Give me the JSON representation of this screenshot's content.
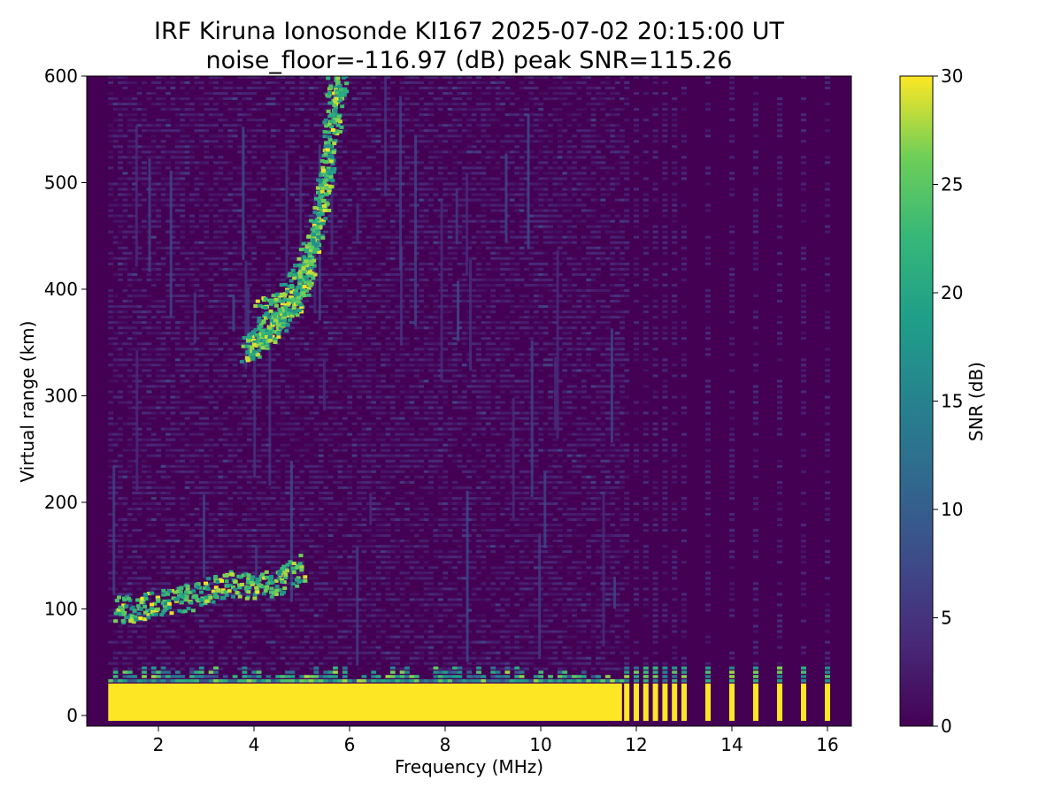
{
  "chart_data": {
    "type": "heatmap",
    "title_line1": "IRF Kiruna Ionosonde KI167 2025-07-02 20:15:00  UT",
    "title_line2": "noise_floor=-116.97 (dB) peak SNR=115.26",
    "xlabel": "Frequency (MHz)",
    "ylabel": "Virtual range (km)",
    "xlim": [
      0.5,
      16.5
    ],
    "ylim": [
      -10,
      600
    ],
    "x_ticks": [
      2,
      4,
      6,
      8,
      10,
      12,
      14,
      16
    ],
    "x_tick_labels": [
      "2",
      "4",
      "6",
      "8",
      "10",
      "12",
      "14",
      "16"
    ],
    "y_ticks": [
      0,
      100,
      200,
      300,
      400,
      500,
      600
    ],
    "y_tick_labels": [
      "0",
      "100",
      "200",
      "300",
      "400",
      "500",
      "600"
    ],
    "colorbar": {
      "label": "SNR (dB)",
      "range": [
        0,
        30
      ],
      "colormap": "viridis",
      "ticks": [
        0,
        5,
        10,
        15,
        20,
        25,
        30
      ],
      "tick_labels": [
        "0",
        "5",
        "10",
        "15",
        "20",
        "25",
        "30"
      ]
    },
    "data_frequency_range_mhz": [
      0.95,
      16.1
    ],
    "continuous_sweep_end_mhz": 11.7,
    "ground_clutter": {
      "range_km": [
        -5,
        30
      ],
      "snr_db": 30
    },
    "e_layer_trace": [
      {
        "f": 1.1,
        "h": 100
      },
      {
        "f": 1.5,
        "h": 102
      },
      {
        "f": 2.0,
        "h": 106
      },
      {
        "f": 2.5,
        "h": 110
      },
      {
        "f": 3.0,
        "h": 118
      },
      {
        "f": 3.5,
        "h": 125
      },
      {
        "f": 4.0,
        "h": 122
      },
      {
        "f": 4.5,
        "h": 128
      },
      {
        "f": 5.0,
        "h": 140
      }
    ],
    "f_layer_trace": [
      {
        "f": 3.8,
        "h": 345
      },
      {
        "f": 4.0,
        "h": 350
      },
      {
        "f": 4.3,
        "h": 362
      },
      {
        "f": 4.6,
        "h": 378
      },
      {
        "f": 4.9,
        "h": 395
      },
      {
        "f": 5.1,
        "h": 420
      },
      {
        "f": 5.3,
        "h": 455
      },
      {
        "f": 5.5,
        "h": 505
      },
      {
        "f": 5.7,
        "h": 570
      },
      {
        "f": 5.8,
        "h": 600
      }
    ],
    "f_layer_second_hop": [
      {
        "f": 4.0,
        "h": 380
      },
      {
        "f": 4.5,
        "h": 392
      },
      {
        "f": 5.0,
        "h": 425
      },
      {
        "f": 5.3,
        "h": 470
      },
      {
        "f": 5.5,
        "h": 520
      },
      {
        "f": 5.6,
        "h": 600
      }
    ],
    "discrete_channels_mhz": [
      11.8,
      12.0,
      12.2,
      12.4,
      12.6,
      12.8,
      13.0,
      13.5,
      14.0,
      14.5,
      15.0,
      15.5,
      16.0
    ]
  }
}
